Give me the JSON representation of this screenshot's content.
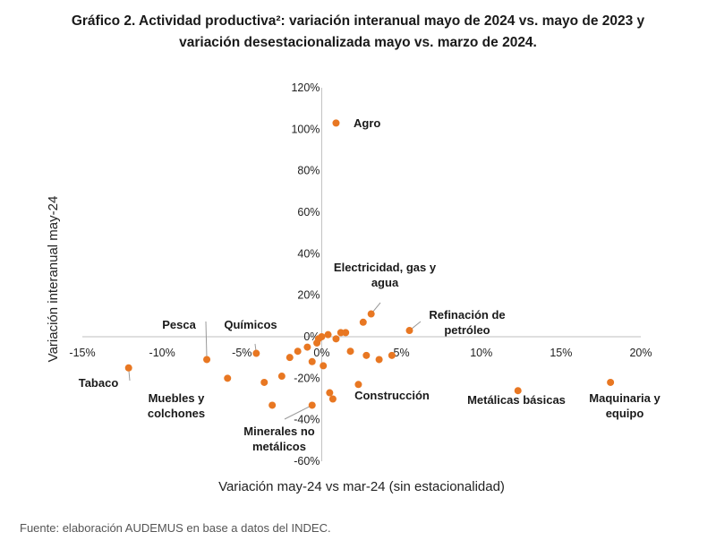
{
  "title_line1": "Gráfico 2.  Actividad productiva²: variación interanual mayo de 2024 vs. mayo de 2023 y",
  "title_line2": "variación desestacionalizada mayo vs. marzo de 2024.",
  "source": "Fuente: elaboración AUDEMUS en base a datos del INDEC.",
  "chart_data": {
    "type": "scatter",
    "xlabel": "Variación may-24 vs mar-24 (sin estacionalidad)",
    "ylabel": "Variación interanual may-24",
    "xlim": [
      -15,
      20
    ],
    "ylim": [
      -60,
      120
    ],
    "xticks": [
      -15,
      -10,
      -5,
      0,
      5,
      10,
      15,
      20
    ],
    "yticks": [
      -60,
      -40,
      -20,
      0,
      20,
      40,
      60,
      80,
      100,
      120
    ],
    "xtick_labels": [
      "-15%",
      "-10%",
      "-5%",
      "0%",
      "5%",
      "10%",
      "15%",
      "20%"
    ],
    "ytick_labels": [
      "-60%",
      "-40%",
      "-20%",
      "0%",
      "20%",
      "40%",
      "60%",
      "80%",
      "100%",
      "120%"
    ],
    "marker_color": "#E87722",
    "points": [
      {
        "x": 0.9,
        "y": 103,
        "label": "Agro"
      },
      {
        "x": 3.1,
        "y": 11,
        "label": "Electricidad, gas y\nagua"
      },
      {
        "x": 5.5,
        "y": 3,
        "label": "Refinación de\npetróleo"
      },
      {
        "x": -7.2,
        "y": -11,
        "label": "Pesca"
      },
      {
        "x": -4.1,
        "y": -8,
        "label": "Químicos"
      },
      {
        "x": -12.1,
        "y": -15,
        "label": "Tabaco"
      },
      {
        "x": -3.1,
        "y": -33,
        "label": "Muebles y\ncolchones"
      },
      {
        "x": -0.6,
        "y": -33,
        "label": "Minerales no\nmetálicos"
      },
      {
        "x": 2.3,
        "y": -23,
        "label": "Construcción"
      },
      {
        "x": 12.3,
        "y": -26,
        "label": "Metálicas básicas"
      },
      {
        "x": 18.1,
        "y": -22,
        "label": "Maquinaria y\nequipo"
      },
      {
        "x": -5.9,
        "y": -20,
        "label": ""
      },
      {
        "x": -3.6,
        "y": -22,
        "label": ""
      },
      {
        "x": -2.5,
        "y": -19,
        "label": ""
      },
      {
        "x": -2.0,
        "y": -10,
        "label": ""
      },
      {
        "x": -1.5,
        "y": -7,
        "label": ""
      },
      {
        "x": -0.9,
        "y": -5,
        "label": ""
      },
      {
        "x": -0.6,
        "y": -12,
        "label": ""
      },
      {
        "x": -0.3,
        "y": -3,
        "label": ""
      },
      {
        "x": -0.2,
        "y": -1,
        "label": ""
      },
      {
        "x": 0.0,
        "y": 0,
        "label": ""
      },
      {
        "x": 0.1,
        "y": -14,
        "label": ""
      },
      {
        "x": 0.4,
        "y": 1,
        "label": ""
      },
      {
        "x": 0.5,
        "y": -27,
        "label": ""
      },
      {
        "x": 0.7,
        "y": -30,
        "label": ""
      },
      {
        "x": 0.9,
        "y": -1,
        "label": ""
      },
      {
        "x": 1.2,
        "y": 2,
        "label": ""
      },
      {
        "x": 1.5,
        "y": 2,
        "label": ""
      },
      {
        "x": 1.8,
        "y": -7,
        "label": ""
      },
      {
        "x": 2.6,
        "y": 7,
        "label": ""
      },
      {
        "x": 2.8,
        "y": -9,
        "label": ""
      },
      {
        "x": 3.6,
        "y": -11,
        "label": ""
      },
      {
        "x": 4.4,
        "y": -9,
        "label": ""
      }
    ]
  }
}
